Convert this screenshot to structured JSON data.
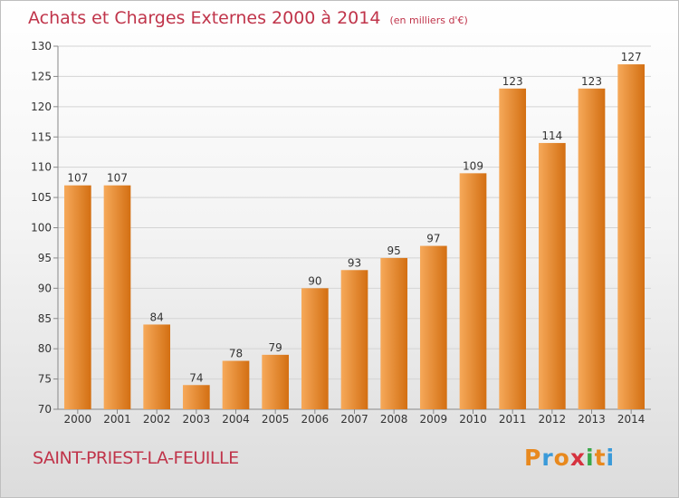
{
  "header": {
    "title": "Achats et Charges Externes 2000 à 2014",
    "unit": "(en milliers d'€)"
  },
  "footer": {
    "place": "SAINT-PRIEST-LA-FEUILLE",
    "logo_letters": [
      "P",
      "r",
      "o",
      "x",
      "i",
      "t",
      "i"
    ],
    "logo_colors": [
      "#e8891e",
      "#3a9ad9",
      "#e8891e",
      "#d6323f",
      "#3aa84a",
      "#e8891e",
      "#3a9ad9"
    ]
  },
  "colors": {
    "bar_light": "#f6a95a",
    "bar_dark": "#d36f12",
    "title": "#c0344a"
  },
  "chart_data": {
    "type": "bar",
    "title": "Achats et Charges Externes 2000 à 2014",
    "subtitle": "(en milliers d'€)",
    "xlabel": "",
    "ylabel": "",
    "categories": [
      "2000",
      "2001",
      "2002",
      "2003",
      "2004",
      "2005",
      "2006",
      "2007",
      "2008",
      "2009",
      "2010",
      "2011",
      "2012",
      "2013",
      "2014"
    ],
    "values": [
      107,
      107,
      84,
      74,
      78,
      79,
      90,
      93,
      95,
      97,
      109,
      123,
      114,
      123,
      127
    ],
    "ylim": [
      70,
      130
    ],
    "yticks": [
      70,
      75,
      80,
      85,
      90,
      95,
      100,
      105,
      110,
      115,
      120,
      125,
      130
    ],
    "grid": true,
    "legend": "none"
  }
}
